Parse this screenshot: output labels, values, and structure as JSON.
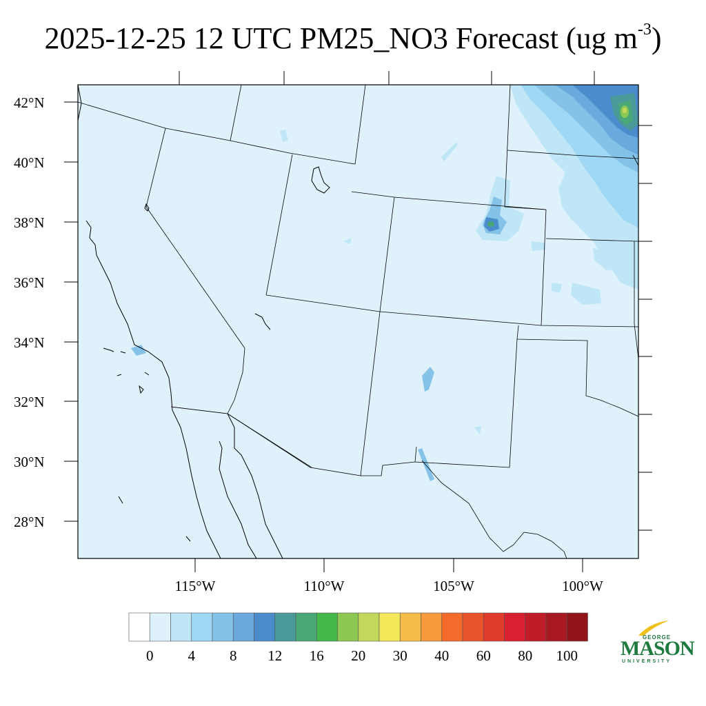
{
  "title": {
    "text": "2025-12-25 12 UTC PM25_NO3 Forecast (ug m",
    "superscript": "-3",
    "close": ")"
  },
  "map": {
    "lat_labels": [
      "42°N",
      "40°N",
      "38°N",
      "36°N",
      "34°N",
      "32°N",
      "30°N",
      "28°N"
    ],
    "lon_labels": [
      "115°W",
      "110°W",
      "105°W",
      "100°W"
    ],
    "background_color": "#dff2fb",
    "border_color": "#000000"
  },
  "colorbar": {
    "colors": [
      "#ffffff",
      "#dff2fb",
      "#bfe6f7",
      "#9fd8f4",
      "#85c2e8",
      "#6aa9dd",
      "#4a8ccc",
      "#4b9a9a",
      "#4aa878",
      "#45b84a",
      "#8cc852",
      "#c2d85a",
      "#f4e85a",
      "#f6bc4a",
      "#f69a3c",
      "#f46a2a",
      "#e8542a",
      "#e03a2a",
      "#d82030",
      "#c01c28",
      "#a81820",
      "#901418"
    ],
    "tick_labels": [
      "0",
      "4",
      "8",
      "12",
      "16",
      "20",
      "30",
      "40",
      "60",
      "80",
      "100"
    ]
  },
  "logo": {
    "line1": "GEORGE",
    "line2": "MASON",
    "line3": "UNIVERSITY",
    "color": "#1f7a3f",
    "accent": "#f2c01e"
  }
}
